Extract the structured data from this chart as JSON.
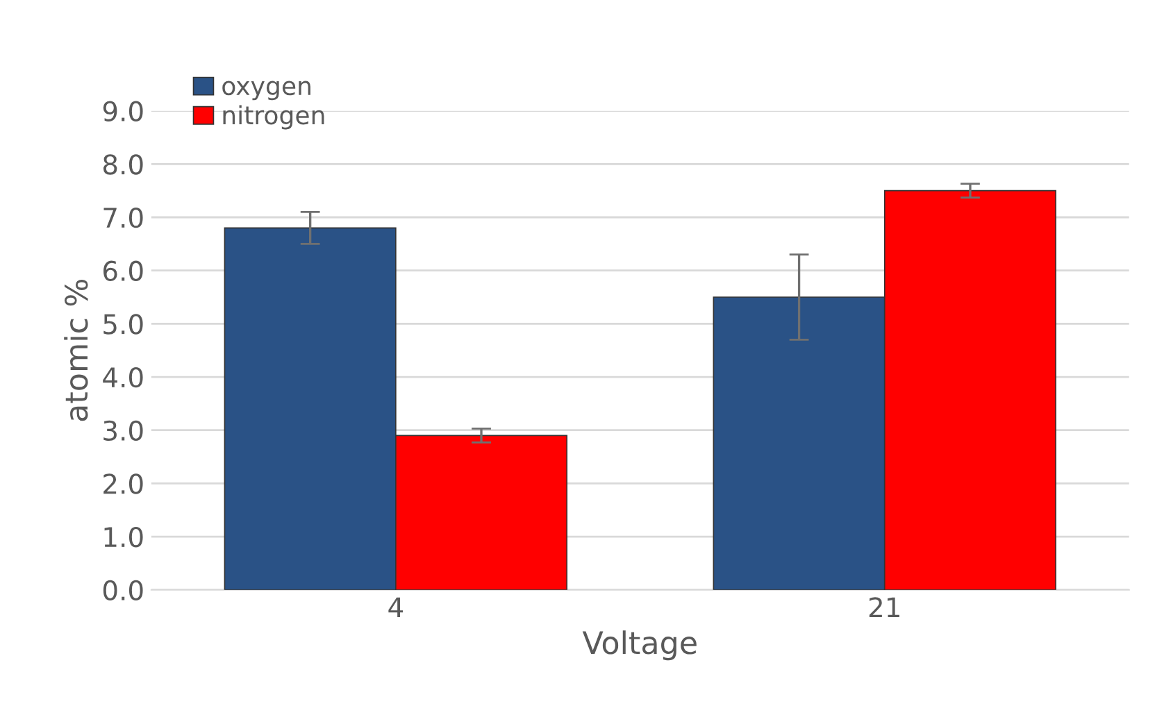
{
  "chart_data": {
    "type": "bar",
    "xlabel": "Voltage",
    "ylabel": "atomic %",
    "categories": [
      "4",
      "21"
    ],
    "series": [
      {
        "name": "oxygen",
        "color": "#2a5286",
        "values": [
          6.8,
          5.5
        ],
        "errors": [
          0.3,
          0.8
        ]
      },
      {
        "name": "nitrogen",
        "color": "#ff0000",
        "values": [
          2.9,
          7.5
        ],
        "errors": [
          0.13,
          0.13
        ]
      }
    ],
    "ylim": [
      0,
      9.0
    ],
    "yticks": [
      {
        "value": 0,
        "label": "0.0"
      },
      {
        "value": 1,
        "label": "1.0"
      },
      {
        "value": 2,
        "label": "2.0"
      },
      {
        "value": 3,
        "label": "3.0"
      },
      {
        "value": 4,
        "label": "4.0"
      },
      {
        "value": 5,
        "label": "5.0"
      },
      {
        "value": 6,
        "label": "6.0"
      },
      {
        "value": 7,
        "label": "7.0"
      },
      {
        "value": 8,
        "label": "8.0"
      },
      {
        "value": 9,
        "label": "9.0"
      }
    ],
    "grid": "y",
    "legend": "top left"
  }
}
